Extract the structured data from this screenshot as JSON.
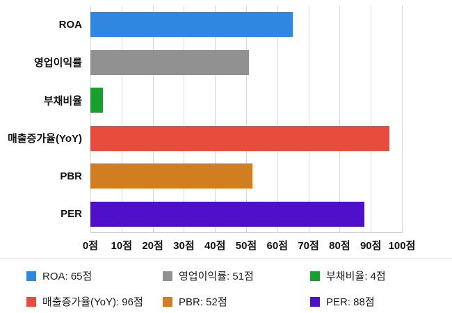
{
  "chart_data": {
    "type": "bar",
    "orientation": "horizontal",
    "title": "",
    "categories": [
      "ROA",
      "영업이익률",
      "부채비율",
      "매출증가율(YoY)",
      "PBR",
      "PER"
    ],
    "values": [
      65,
      51,
      4,
      96,
      52,
      88
    ],
    "bar_colors": [
      "#2f87e0",
      "#919191",
      "#17a02e",
      "#e74c3c",
      "#d07e1f",
      "#4e10c8"
    ],
    "xlim": [
      0,
      100
    ],
    "x_ticks": [
      0,
      10,
      20,
      30,
      40,
      50,
      60,
      70,
      80,
      90,
      100
    ],
    "x_tick_labels": [
      "0점",
      "10점",
      "20점",
      "30점",
      "40점",
      "50점",
      "60점",
      "70점",
      "80점",
      "90점",
      "100점"
    ],
    "value_suffix": "점",
    "grid": true,
    "legend_position": "bottom",
    "legend": [
      {
        "label": "ROA: 65점",
        "color": "#2f87e0"
      },
      {
        "label": "영업이익률: 51점",
        "color": "#919191"
      },
      {
        "label": "부채비율: 4점",
        "color": "#17a02e"
      },
      {
        "label": "매출증가율(YoY): 96점",
        "color": "#e74c3c"
      },
      {
        "label": "PBR: 52점",
        "color": "#d07e1f"
      },
      {
        "label": "PER: 88점",
        "color": "#4e10c8"
      }
    ]
  }
}
